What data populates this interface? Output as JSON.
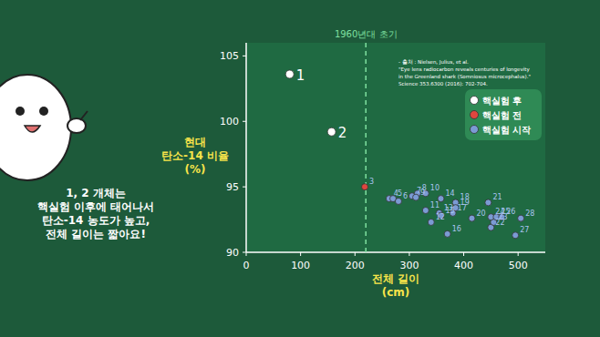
{
  "chart_data": {
    "type": "scatter",
    "x_label": [
      "전체 길이",
      "(cm)"
    ],
    "y_label": [
      "현대",
      "탄소-14 비율",
      "(%)"
    ],
    "xlim": [
      0,
      550
    ],
    "xticks": [
      0,
      100,
      200,
      300,
      400,
      500
    ],
    "ylim": [
      90,
      106
    ],
    "yticks": [
      90,
      95,
      100,
      105
    ],
    "grid": false,
    "legend": "upper right",
    "annotations": [
      {
        "text": "1960년대 초기",
        "x": 220,
        "line_style": "dashed"
      }
    ],
    "source": [
      "- 출처 : Nielsen, Julius, et al.",
      "\"Eye lens radiocarbon reveals centuries of longevity",
      "in the Greenland shark (Somniosus microcephalus).\"",
      "Science 353.6300 (2016): 702-704."
    ],
    "speech": [
      "1, 2 개체는",
      "핵실험 이후에 태어나서",
      "탄소-14 농도가 높고,",
      "전체 길이는 짧아요!"
    ],
    "series": [
      {
        "name": "핵실험 후",
        "color": "#ffffff",
        "marker": "circle",
        "x": [
          80,
          157
        ],
        "values": [
          103.6,
          99.2
        ],
        "labels": [
          "1",
          "2"
        ]
      },
      {
        "name": "핵실험 전",
        "color": "#e0463f",
        "marker": "circle",
        "x": [
          218
        ],
        "values": [
          95.0
        ],
        "labels": [
          "3"
        ]
      },
      {
        "name": "핵실험 시작",
        "color": "#7b9bd4",
        "marker": "circle",
        "x": [
          263,
          270,
          280,
          305,
          315,
          312,
          330,
          330,
          340,
          355,
          358,
          358,
          370,
          380,
          385,
          385,
          415,
          445,
          450,
          455,
          450,
          460,
          470,
          495,
          505
        ],
        "values": [
          94.1,
          94.1,
          93.9,
          94.3,
          94.5,
          94.2,
          94.5,
          93.2,
          92.3,
          93.0,
          94.1,
          92.8,
          91.4,
          93.0,
          93.8,
          93.4,
          92.6,
          93.8,
          91.9,
          92.3,
          92.7,
          92.7,
          92.7,
          91.3,
          92.6
        ],
        "labels": [
          "4",
          "5",
          "6",
          "7",
          "8",
          "9",
          "10",
          "11",
          "12",
          "13",
          "14",
          "15",
          "16",
          "17",
          "18",
          "19",
          "20",
          "21",
          "22",
          "23",
          "24",
          "25",
          "26",
          "27",
          "28"
        ]
      }
    ]
  }
}
